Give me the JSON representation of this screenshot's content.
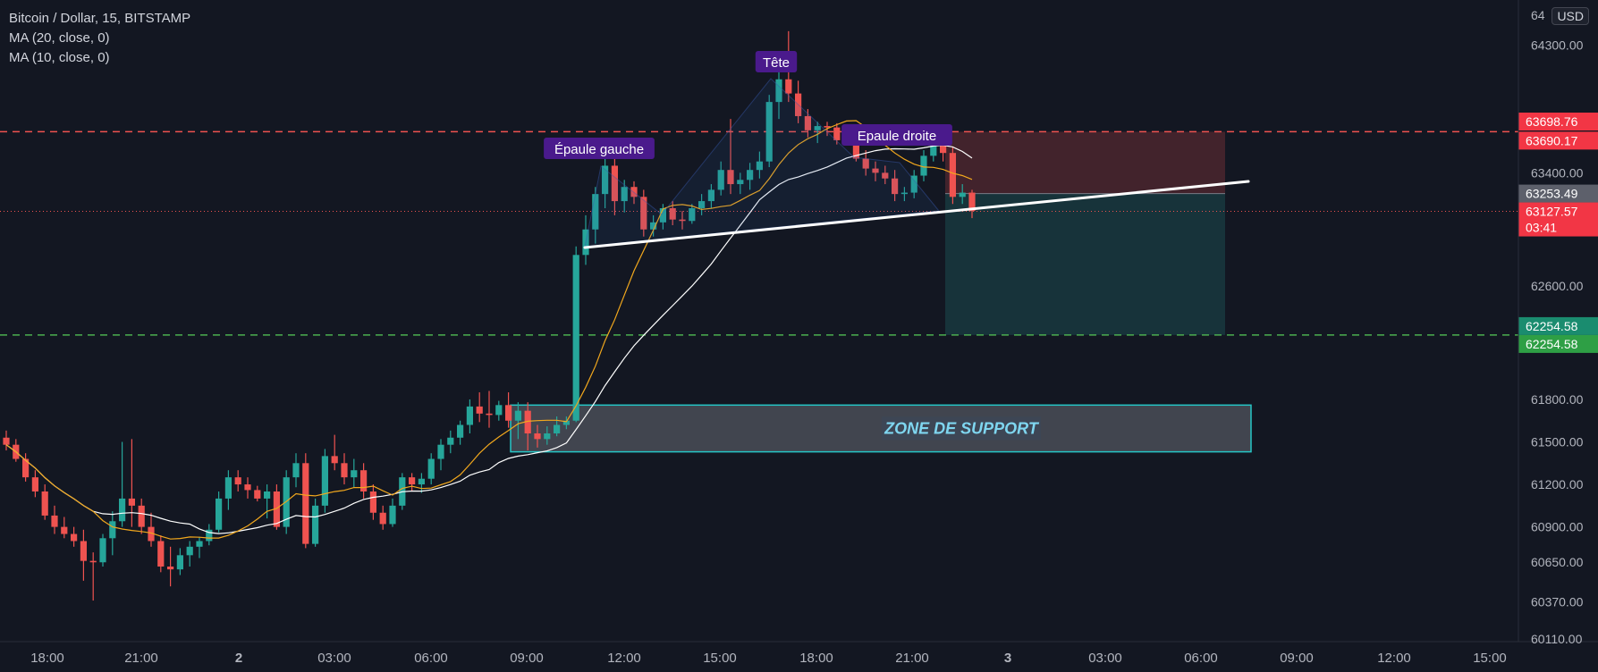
{
  "legend": {
    "symbol": "Bitcoin / Dollar, 15, BITSTAMP",
    "ma20": "MA (20, close, 0)",
    "ma10": "MA (10, close, 0)"
  },
  "currency_button": "USD",
  "colors": {
    "background": "#131722",
    "up": "#26a69a",
    "down": "#ef5350",
    "ma20": "#ffffff",
    "ma10": "#f2a81d",
    "label_bg": "#4a1a8c",
    "support_zone": "#4a4d57",
    "support_border": "#26c6c6"
  },
  "chart_data": {
    "type": "candlestick",
    "title": "Bitcoin / Dollar, 15, BITSTAMP",
    "x_ticks": [
      "18:00",
      "21:00",
      "2",
      "03:00",
      "06:00",
      "09:00",
      "12:00",
      "15:00",
      "18:00",
      "21:00",
      "3",
      "03:00",
      "06:00",
      "09:00",
      "12:00",
      "15:00"
    ],
    "y_ticks": [
      "64300.00",
      "63400.00",
      "62600.00",
      "61800.00",
      "61500.00",
      "61200.00",
      "60900.00",
      "60650.00",
      "60370.00",
      "60110.00"
    ],
    "y_top_partial_label": "64",
    "ylim": [
      60090,
      64620
    ],
    "price_labels": [
      {
        "text": "63698.76",
        "value": 63698.76,
        "kind": "red"
      },
      {
        "text": "63690.17",
        "value": 63690.17,
        "kind": "red"
      },
      {
        "text": "63253.49",
        "value": 63253.49,
        "kind": "gray"
      },
      {
        "text": "63127.57",
        "value": 63127.57,
        "kind": "red",
        "sub": "03:41"
      },
      {
        "text": "62254.58",
        "value": 62254.58,
        "kind": "teal"
      },
      {
        "text": "62254.58",
        "value": 62254.58,
        "kind": "green"
      }
    ],
    "annotations": [
      "Épaule gauche",
      "Tête",
      "Epaule droite",
      "ZONE DE SUPPORT"
    ],
    "levels": {
      "resistance": 63690.17,
      "target": 62254.58,
      "current": 63127.57,
      "entry": 63253.49,
      "support_zone": [
        61430,
        61760
      ]
    },
    "series": [
      {
        "name": "MA (20, close, 0)",
        "type": "line"
      },
      {
        "name": "MA (10, close, 0)",
        "type": "line"
      }
    ],
    "candles": [
      [
        61530,
        61580,
        61440,
        61480
      ],
      [
        61480,
        61520,
        61360,
        61380
      ],
      [
        61380,
        61420,
        61220,
        61250
      ],
      [
        61250,
        61300,
        61110,
        61150
      ],
      [
        61150,
        61200,
        60950,
        60980
      ],
      [
        60980,
        61050,
        60850,
        60900
      ],
      [
        60900,
        60970,
        60820,
        60850
      ],
      [
        60850,
        60900,
        60760,
        60800
      ],
      [
        60800,
        60880,
        60520,
        60660
      ],
      [
        60660,
        60720,
        60380,
        60650
      ],
      [
        60650,
        60850,
        60620,
        60820
      ],
      [
        60820,
        61010,
        60700,
        60940
      ],
      [
        60940,
        61500,
        60900,
        61100
      ],
      [
        61100,
        61520,
        60900,
        61050
      ],
      [
        61050,
        61100,
        60850,
        60900
      ],
      [
        60900,
        61000,
        60760,
        60800
      ],
      [
        60800,
        60840,
        60580,
        60620
      ],
      [
        60620,
        60760,
        60480,
        60600
      ],
      [
        60600,
        60750,
        60560,
        60700
      ],
      [
        60700,
        60800,
        60620,
        60760
      ],
      [
        60760,
        60830,
        60680,
        60800
      ],
      [
        60800,
        60920,
        60770,
        60880
      ],
      [
        60880,
        61150,
        60860,
        61100
      ],
      [
        61100,
        61300,
        61020,
        61250
      ],
      [
        61250,
        61300,
        61150,
        61200
      ],
      [
        61200,
        61250,
        61100,
        61160
      ],
      [
        61160,
        61190,
        61080,
        61100
      ],
      [
        61100,
        61200,
        60960,
        61150
      ],
      [
        61150,
        61200,
        60880,
        60900
      ],
      [
        60900,
        61300,
        60850,
        61250
      ],
      [
        61250,
        61420,
        61180,
        61350
      ],
      [
        61350,
        61420,
        60750,
        60780
      ],
      [
        60780,
        61100,
        60760,
        61050
      ],
      [
        61050,
        61450,
        61000,
        61400
      ],
      [
        61400,
        61550,
        61300,
        61350
      ],
      [
        61350,
        61420,
        61200,
        61250
      ],
      [
        61250,
        61380,
        61180,
        61300
      ],
      [
        61300,
        61350,
        61100,
        61150
      ],
      [
        61150,
        61200,
        60950,
        61000
      ],
      [
        61000,
        61050,
        60880,
        60920
      ],
      [
        60920,
        61100,
        60900,
        61050
      ],
      [
        61050,
        61280,
        61020,
        61250
      ],
      [
        61250,
        61280,
        61150,
        61200
      ],
      [
        61200,
        61280,
        61140,
        61240
      ],
      [
        61240,
        61420,
        61200,
        61380
      ],
      [
        61380,
        61520,
        61300,
        61480
      ],
      [
        61480,
        61580,
        61420,
        61530
      ],
      [
        61530,
        61650,
        61480,
        61620
      ],
      [
        61620,
        61800,
        61560,
        61750
      ],
      [
        61750,
        61850,
        61640,
        61700
      ],
      [
        61700,
        61860,
        61600,
        61690
      ],
      [
        61690,
        61790,
        61650,
        61760
      ],
      [
        61760,
        61850,
        61600,
        61650
      ],
      [
        61650,
        61780,
        61520,
        61720
      ],
      [
        61720,
        61780,
        61440,
        61560
      ],
      [
        61560,
        61620,
        61460,
        61520
      ],
      [
        61520,
        61610,
        61480,
        61560
      ],
      [
        61560,
        61680,
        61540,
        61620
      ],
      [
        61620,
        61680,
        61590,
        61650
      ],
      [
        61650,
        62880,
        61640,
        62820
      ],
      [
        62820,
        63100,
        62750,
        63000
      ],
      [
        63000,
        63300,
        62900,
        63250
      ],
      [
        63250,
        63580,
        63150,
        63450
      ],
      [
        63450,
        63520,
        63100,
        63200
      ],
      [
        63200,
        63350,
        63120,
        63300
      ],
      [
        63300,
        63340,
        63180,
        63230
      ],
      [
        63230,
        63280,
        62950,
        63000
      ],
      [
        63000,
        63100,
        62950,
        63050
      ],
      [
        63050,
        63180,
        63000,
        63150
      ],
      [
        63150,
        63200,
        63030,
        63070
      ],
      [
        63070,
        63130,
        63000,
        63060
      ],
      [
        63060,
        63180,
        63040,
        63150
      ],
      [
        63150,
        63250,
        63100,
        63200
      ],
      [
        63200,
        63320,
        63150,
        63280
      ],
      [
        63280,
        63480,
        63240,
        63420
      ],
      [
        63420,
        63780,
        63250,
        63320
      ],
      [
        63320,
        63400,
        63250,
        63350
      ],
      [
        63350,
        63470,
        63280,
        63420
      ],
      [
        63420,
        63550,
        63360,
        63480
      ],
      [
        63480,
        63950,
        63440,
        63900
      ],
      [
        63900,
        64230,
        63780,
        64060
      ],
      [
        64060,
        64400,
        63900,
        63960
      ],
      [
        63960,
        64050,
        63750,
        63800
      ],
      [
        63800,
        63850,
        63650,
        63700
      ],
      [
        63700,
        63760,
        63610,
        63730
      ],
      [
        63730,
        63760,
        63660,
        63720
      ],
      [
        63720,
        63750,
        63600,
        63630
      ],
      [
        63630,
        63720,
        63600,
        63680
      ],
      [
        63680,
        63700,
        63480,
        63500
      ],
      [
        63500,
        63560,
        63380,
        63430
      ],
      [
        63430,
        63480,
        63340,
        63400
      ],
      [
        63400,
        63450,
        63320,
        63360
      ],
      [
        63360,
        63420,
        63200,
        63250
      ],
      [
        63250,
        63300,
        63200,
        63260
      ],
      [
        63260,
        63420,
        63220,
        63380
      ],
      [
        63380,
        63560,
        63340,
        63520
      ],
      [
        63520,
        63660,
        63480,
        63600
      ],
      [
        63600,
        63620,
        63480,
        63540
      ],
      [
        63540,
        63580,
        63180,
        63230
      ],
      [
        63230,
        63320,
        63180,
        63260
      ],
      [
        63260,
        63280,
        63080,
        63130
      ]
    ]
  }
}
